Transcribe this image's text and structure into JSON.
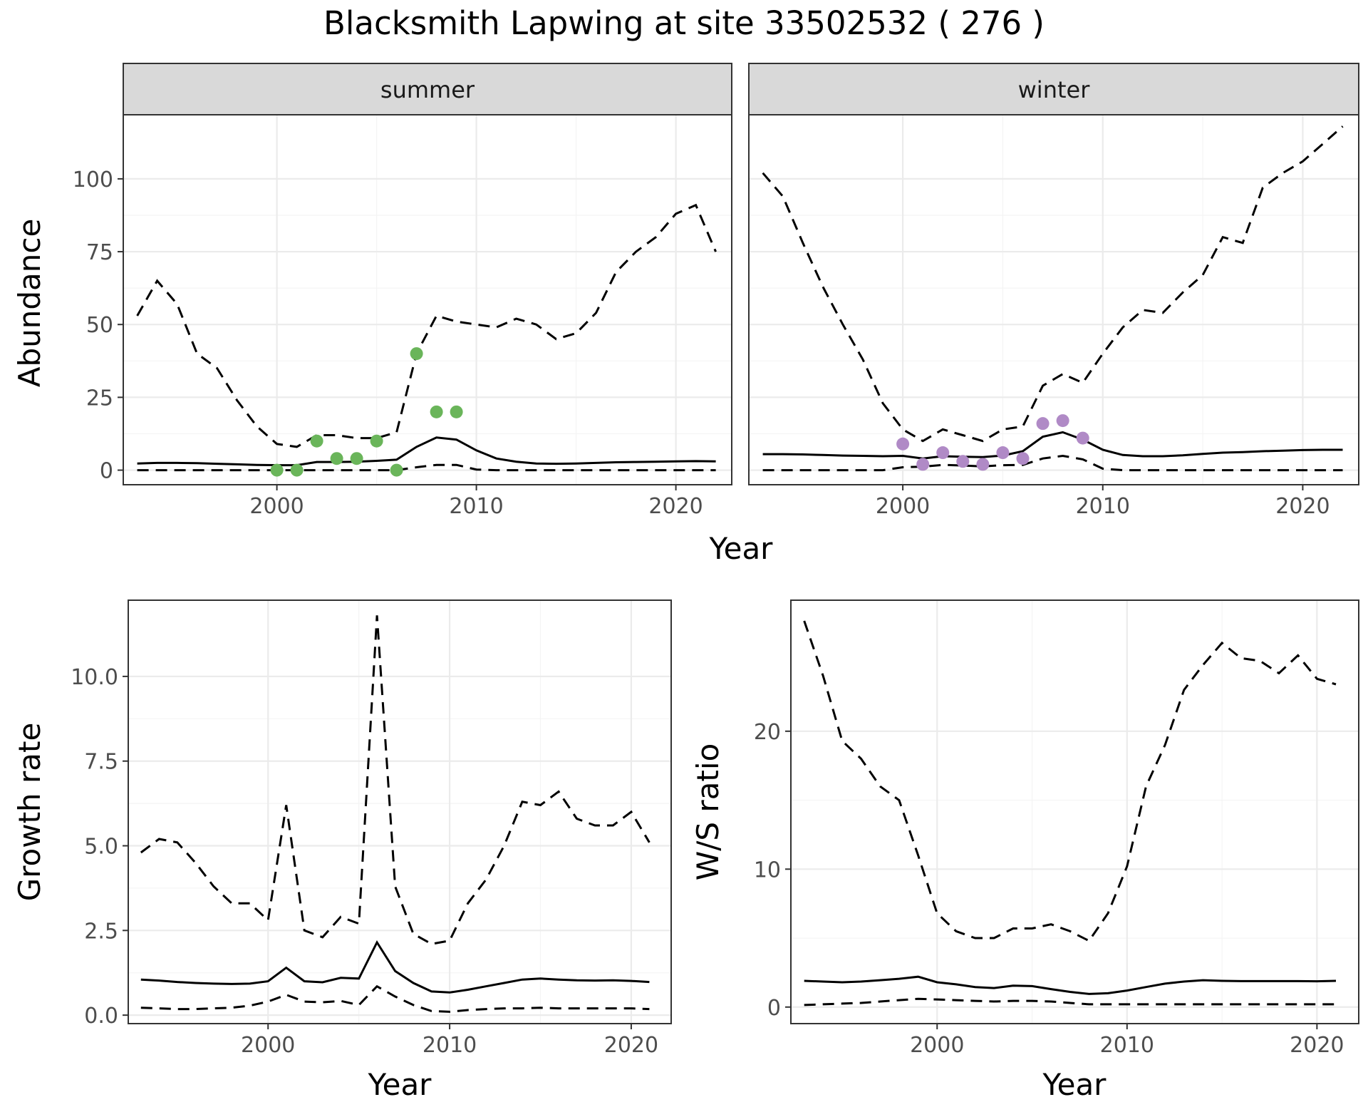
{
  "title": "Blacksmith Lapwing at site 33502532 ( 276 )",
  "colors": {
    "summer_points": "#6ab55a",
    "winter_points": "#b08ac6",
    "line": "#000000",
    "grid_major": "#ebebeb",
    "grid_minor": "#f4f4f4",
    "strip_bg": "#d9d9d9",
    "panel_border": "#333333"
  },
  "chart_data": [
    {
      "type": "line",
      "panel": "abundance",
      "facets": [
        "summer",
        "winter"
      ],
      "xlabel": "Year",
      "ylabel": "Abundance",
      "xlim": [
        1992.3,
        2022.8
      ],
      "ylim": [
        -5,
        122
      ],
      "xticks": [
        "2000",
        "2010",
        "2020"
      ],
      "yticks": [
        "0",
        "25",
        "50",
        "75",
        "100"
      ],
      "grid": true,
      "summer": {
        "years": [
          1993,
          1994,
          1995,
          1996,
          1997,
          1998,
          1999,
          2000,
          2001,
          2002,
          2003,
          2004,
          2005,
          2006,
          2007,
          2008,
          2009,
          2010,
          2011,
          2012,
          2013,
          2014,
          2015,
          2016,
          2017,
          2018,
          2019,
          2020,
          2021,
          2022
        ],
        "mean": [
          2.3,
          2.5,
          2.5,
          2.4,
          2.2,
          2.0,
          1.8,
          1.7,
          1.7,
          2.8,
          2.8,
          2.9,
          3.2,
          3.6,
          8.0,
          11.2,
          10.5,
          6.8,
          4.0,
          2.9,
          2.3,
          2.2,
          2.3,
          2.5,
          2.7,
          2.8,
          2.9,
          3.0,
          3.1,
          3.0
        ],
        "lower": [
          0,
          0,
          0,
          0,
          0,
          0,
          0,
          0,
          0,
          0,
          0,
          0,
          0,
          0,
          1.0,
          1.8,
          1.8,
          0.2,
          0,
          0,
          0,
          0,
          0,
          0,
          0,
          0,
          0,
          0,
          0,
          0
        ],
        "upper": [
          53,
          65,
          57,
          40,
          35,
          24,
          15,
          9,
          8,
          12,
          12,
          11,
          11,
          13,
          40,
          53,
          51,
          50,
          49,
          52,
          50,
          45,
          47,
          54,
          68,
          75,
          80,
          88,
          91,
          75
        ],
        "observed": {
          "years": [
            2000,
            2001,
            2002,
            2003,
            2004,
            2005,
            2006,
            2007,
            2008,
            2009
          ],
          "values": [
            0,
            0,
            10,
            4,
            4,
            10,
            0,
            40,
            20,
            20
          ]
        }
      },
      "winter": {
        "years": [
          1993,
          1994,
          1995,
          1996,
          1997,
          1998,
          1999,
          2000,
          2001,
          2002,
          2003,
          2004,
          2005,
          2006,
          2007,
          2008,
          2009,
          2010,
          2011,
          2012,
          2013,
          2014,
          2015,
          2016,
          2017,
          2018,
          2019,
          2020,
          2021,
          2022
        ],
        "mean": [
          5.5,
          5.5,
          5.4,
          5.2,
          5.0,
          4.9,
          4.8,
          4.9,
          4.0,
          4.8,
          4.6,
          4.5,
          5.0,
          6.5,
          11.5,
          13.0,
          10.5,
          7.0,
          5.2,
          4.8,
          4.8,
          5.1,
          5.6,
          6.0,
          6.2,
          6.5,
          6.7,
          6.9,
          7.0,
          7.0
        ],
        "lower": [
          0,
          0,
          0,
          0,
          0,
          0,
          0,
          1.0,
          1.2,
          1.8,
          1.6,
          1.3,
          1.7,
          1.8,
          4.0,
          4.9,
          3.7,
          0.5,
          0,
          0,
          0,
          0,
          0,
          0,
          0,
          0,
          0,
          0,
          0,
          0
        ],
        "upper": [
          102,
          94,
          78,
          63,
          50,
          38,
          23,
          14,
          10,
          14,
          12,
          10,
          14,
          15,
          29,
          33,
          30,
          40,
          49,
          55,
          54,
          61,
          67,
          80,
          78,
          97,
          102,
          106,
          112,
          118
        ],
        "observed": {
          "years": [
            2000,
            2001,
            2002,
            2003,
            2004,
            2005,
            2006,
            2007,
            2008,
            2009
          ],
          "values": [
            9,
            2,
            6,
            3,
            2,
            6,
            4,
            16,
            17,
            11
          ]
        }
      }
    },
    {
      "type": "line",
      "panel": "growth",
      "xlabel": "Year",
      "ylabel": "Growth rate",
      "xlim": [
        1992.3,
        2022.2
      ],
      "ylim": [
        -0.25,
        12.25
      ],
      "xticks": [
        "2000",
        "2010",
        "2020"
      ],
      "yticks": [
        "0.0",
        "2.5",
        "5.0",
        "7.5",
        "10.0"
      ],
      "grid": true,
      "years": [
        1993,
        1994,
        1995,
        1996,
        1997,
        1998,
        1999,
        2000,
        2001,
        2002,
        2003,
        2004,
        2005,
        2006,
        2007,
        2008,
        2009,
        2010,
        2011,
        2012,
        2013,
        2014,
        2015,
        2016,
        2017,
        2018,
        2019,
        2020,
        2021
      ],
      "mean": [
        1.05,
        1.02,
        0.98,
        0.95,
        0.93,
        0.92,
        0.93,
        1.0,
        1.4,
        1.0,
        0.97,
        1.1,
        1.08,
        2.15,
        1.3,
        0.95,
        0.7,
        0.67,
        0.75,
        0.85,
        0.95,
        1.05,
        1.08,
        1.05,
        1.03,
        1.02,
        1.03,
        1.01,
        0.98
      ],
      "lower": [
        0.22,
        0.2,
        0.18,
        0.18,
        0.2,
        0.22,
        0.28,
        0.4,
        0.6,
        0.4,
        0.38,
        0.42,
        0.3,
        0.85,
        0.55,
        0.3,
        0.12,
        0.1,
        0.15,
        0.18,
        0.2,
        0.2,
        0.22,
        0.2,
        0.2,
        0.2,
        0.2,
        0.2,
        0.18
      ],
      "upper": [
        4.8,
        5.2,
        5.1,
        4.5,
        3.8,
        3.3,
        3.3,
        2.8,
        6.2,
        2.5,
        2.3,
        2.9,
        2.7,
        11.8,
        3.8,
        2.4,
        2.1,
        2.2,
        3.3,
        4.0,
        5.0,
        6.3,
        6.2,
        6.6,
        5.8,
        5.6,
        5.6,
        6.0,
        5.1
      ]
    },
    {
      "type": "line",
      "panel": "ratio",
      "xlabel": "Year",
      "ylabel": "W/S ratio",
      "xlim": [
        1992.3,
        2022.2
      ],
      "ylim": [
        -1.2,
        29.5
      ],
      "xticks": [
        "2000",
        "2010",
        "2020"
      ],
      "yticks": [
        "0",
        "10",
        "20"
      ],
      "grid": true,
      "years": [
        1993,
        1994,
        1995,
        1996,
        1997,
        1998,
        1999,
        2000,
        2001,
        2002,
        2003,
        2004,
        2005,
        2006,
        2007,
        2008,
        2009,
        2010,
        2011,
        2012,
        2013,
        2014,
        2015,
        2016,
        2017,
        2018,
        2019,
        2020,
        2021
      ],
      "mean": [
        1.9,
        1.85,
        1.8,
        1.85,
        1.95,
        2.05,
        2.2,
        1.8,
        1.65,
        1.45,
        1.38,
        1.55,
        1.52,
        1.3,
        1.1,
        0.95,
        1.0,
        1.2,
        1.45,
        1.7,
        1.85,
        1.95,
        1.9,
        1.88,
        1.88,
        1.88,
        1.88,
        1.87,
        1.9
      ],
      "lower": [
        0.15,
        0.2,
        0.25,
        0.3,
        0.4,
        0.5,
        0.6,
        0.55,
        0.5,
        0.45,
        0.4,
        0.45,
        0.45,
        0.4,
        0.3,
        0.2,
        0.2,
        0.2,
        0.2,
        0.2,
        0.2,
        0.2,
        0.2,
        0.2,
        0.2,
        0.2,
        0.2,
        0.2,
        0.2
      ],
      "upper": [
        28,
        24,
        19.3,
        18,
        16,
        15,
        11,
        6.8,
        5.5,
        5.0,
        5.0,
        5.7,
        5.7,
        6.0,
        5.5,
        4.8,
        6.8,
        10.2,
        16,
        19,
        23,
        24.8,
        26.4,
        25.3,
        25.1,
        24.2,
        25.5,
        23.8,
        23.4
      ]
    }
  ]
}
